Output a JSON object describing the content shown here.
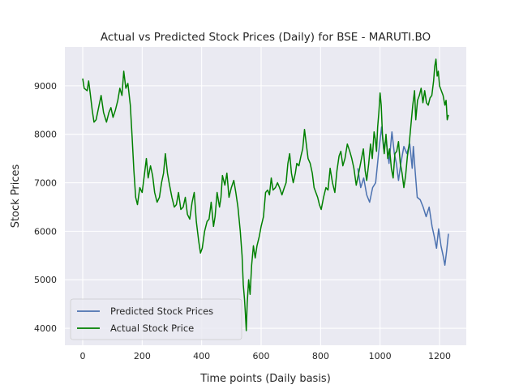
{
  "chart_data": {
    "type": "line",
    "title": "Actual vs Predicted Stock Prices (Daily) for BSE - MARUTI.BO",
    "xlabel": "Time points (Daily basis)",
    "ylabel": "Stock Prices",
    "xlim": [
      -60,
      1290
    ],
    "ylim": [
      3650,
      9800
    ],
    "xticks": [
      0,
      200,
      400,
      600,
      800,
      1000,
      1200
    ],
    "yticks": [
      4000,
      5000,
      6000,
      7000,
      8000,
      9000
    ],
    "grid": true,
    "legend_position": "lower-left",
    "background_color": "#eaeaf2",
    "series": [
      {
        "name": "Predicted Stock Prices",
        "color": "#4c72b0",
        "points": [
          [
            925,
            7300
          ],
          [
            935,
            6900
          ],
          [
            945,
            7100
          ],
          [
            955,
            6750
          ],
          [
            965,
            6600
          ],
          [
            975,
            6900
          ],
          [
            985,
            7000
          ],
          [
            995,
            7600
          ],
          [
            1005,
            8150
          ],
          [
            1012,
            7700
          ],
          [
            1020,
            7900
          ],
          [
            1030,
            7400
          ],
          [
            1040,
            8050
          ],
          [
            1048,
            7600
          ],
          [
            1055,
            7400
          ],
          [
            1062,
            7050
          ],
          [
            1070,
            7400
          ],
          [
            1080,
            7750
          ],
          [
            1090,
            7600
          ],
          [
            1100,
            7800
          ],
          [
            1108,
            7300
          ],
          [
            1112,
            7750
          ],
          [
            1118,
            7250
          ],
          [
            1125,
            6700
          ],
          [
            1135,
            6650
          ],
          [
            1145,
            6500
          ],
          [
            1155,
            6300
          ],
          [
            1165,
            6500
          ],
          [
            1175,
            6100
          ],
          [
            1182,
            5900
          ],
          [
            1190,
            5650
          ],
          [
            1197,
            6050
          ],
          [
            1205,
            5700
          ],
          [
            1212,
            5500
          ],
          [
            1218,
            5300
          ],
          [
            1224,
            5600
          ],
          [
            1230,
            5950
          ]
        ]
      },
      {
        "name": "Actual Stock Price",
        "color": "#008000",
        "points": [
          [
            0,
            9150
          ],
          [
            5,
            8950
          ],
          [
            15,
            8900
          ],
          [
            20,
            9100
          ],
          [
            25,
            8850
          ],
          [
            32,
            8500
          ],
          [
            38,
            8250
          ],
          [
            45,
            8300
          ],
          [
            55,
            8600
          ],
          [
            62,
            8800
          ],
          [
            70,
            8450
          ],
          [
            80,
            8250
          ],
          [
            88,
            8450
          ],
          [
            95,
            8550
          ],
          [
            102,
            8350
          ],
          [
            110,
            8500
          ],
          [
            118,
            8700
          ],
          [
            125,
            8950
          ],
          [
            132,
            8800
          ],
          [
            138,
            9300
          ],
          [
            145,
            8950
          ],
          [
            152,
            9050
          ],
          [
            160,
            8600
          ],
          [
            166,
            7950
          ],
          [
            172,
            7250
          ],
          [
            178,
            6700
          ],
          [
            184,
            6550
          ],
          [
            192,
            6900
          ],
          [
            200,
            6800
          ],
          [
            208,
            7200
          ],
          [
            214,
            7500
          ],
          [
            220,
            7100
          ],
          [
            228,
            7350
          ],
          [
            235,
            7150
          ],
          [
            242,
            6800
          ],
          [
            250,
            6600
          ],
          [
            258,
            6700
          ],
          [
            265,
            7000
          ],
          [
            272,
            7200
          ],
          [
            278,
            7600
          ],
          [
            285,
            7200
          ],
          [
            292,
            6950
          ],
          [
            300,
            6700
          ],
          [
            308,
            6500
          ],
          [
            315,
            6550
          ],
          [
            322,
            6800
          ],
          [
            330,
            6450
          ],
          [
            338,
            6500
          ],
          [
            345,
            6700
          ],
          [
            352,
            6350
          ],
          [
            360,
            6250
          ],
          [
            368,
            6600
          ],
          [
            375,
            6800
          ],
          [
            382,
            6200
          ],
          [
            390,
            5800
          ],
          [
            396,
            5550
          ],
          [
            402,
            5650
          ],
          [
            410,
            6000
          ],
          [
            418,
            6200
          ],
          [
            425,
            6250
          ],
          [
            432,
            6600
          ],
          [
            440,
            6100
          ],
          [
            445,
            6300
          ],
          [
            452,
            6800
          ],
          [
            460,
            6500
          ],
          [
            465,
            6700
          ],
          [
            470,
            7150
          ],
          [
            478,
            6950
          ],
          [
            485,
            7200
          ],
          [
            492,
            6700
          ],
          [
            500,
            6900
          ],
          [
            508,
            7050
          ],
          [
            515,
            6800
          ],
          [
            522,
            6500
          ],
          [
            530,
            6000
          ],
          [
            536,
            5500
          ],
          [
            540,
            4900
          ],
          [
            544,
            4600
          ],
          [
            547,
            4300
          ],
          [
            550,
            3950
          ],
          [
            553,
            4500
          ],
          [
            558,
            5000
          ],
          [
            563,
            4700
          ],
          [
            568,
            5300
          ],
          [
            574,
            5700
          ],
          [
            580,
            5450
          ],
          [
            586,
            5700
          ],
          [
            594,
            5900
          ],
          [
            600,
            6100
          ],
          [
            608,
            6300
          ],
          [
            615,
            6800
          ],
          [
            622,
            6850
          ],
          [
            628,
            6750
          ],
          [
            634,
            7100
          ],
          [
            640,
            6850
          ],
          [
            648,
            6900
          ],
          [
            655,
            7000
          ],
          [
            662,
            6900
          ],
          [
            670,
            6750
          ],
          [
            678,
            6900
          ],
          [
            684,
            7000
          ],
          [
            690,
            7400
          ],
          [
            696,
            7600
          ],
          [
            702,
            7200
          ],
          [
            708,
            7000
          ],
          [
            715,
            7200
          ],
          [
            720,
            7400
          ],
          [
            727,
            7350
          ],
          [
            734,
            7550
          ],
          [
            740,
            7700
          ],
          [
            746,
            8100
          ],
          [
            752,
            7800
          ],
          [
            758,
            7500
          ],
          [
            765,
            7400
          ],
          [
            772,
            7200
          ],
          [
            778,
            6900
          ],
          [
            784,
            6800
          ],
          [
            790,
            6700
          ],
          [
            796,
            6550
          ],
          [
            802,
            6450
          ],
          [
            810,
            6700
          ],
          [
            818,
            6900
          ],
          [
            825,
            6850
          ],
          [
            832,
            7300
          ],
          [
            840,
            7000
          ],
          [
            848,
            6800
          ],
          [
            855,
            7250
          ],
          [
            862,
            7550
          ],
          [
            868,
            7650
          ],
          [
            875,
            7350
          ],
          [
            882,
            7500
          ],
          [
            890,
            7800
          ],
          [
            898,
            7650
          ],
          [
            905,
            7500
          ],
          [
            912,
            7300
          ],
          [
            920,
            6950
          ],
          [
            928,
            7200
          ],
          [
            936,
            7450
          ],
          [
            944,
            7700
          ],
          [
            950,
            7250
          ],
          [
            955,
            7050
          ],
          [
            962,
            7400
          ],
          [
            968,
            7800
          ],
          [
            974,
            7500
          ],
          [
            980,
            8050
          ],
          [
            984,
            7900
          ],
          [
            988,
            7650
          ],
          [
            992,
            8150
          ],
          [
            996,
            8450
          ],
          [
            1000,
            8850
          ],
          [
            1004,
            8600
          ],
          [
            1008,
            8000
          ],
          [
            1014,
            7600
          ],
          [
            1020,
            8000
          ],
          [
            1026,
            7500
          ],
          [
            1032,
            7700
          ],
          [
            1038,
            7300
          ],
          [
            1044,
            7100
          ],
          [
            1050,
            7600
          ],
          [
            1056,
            7650
          ],
          [
            1062,
            7850
          ],
          [
            1068,
            7400
          ],
          [
            1074,
            7200
          ],
          [
            1080,
            6900
          ],
          [
            1086,
            7150
          ],
          [
            1092,
            7550
          ],
          [
            1098,
            7800
          ],
          [
            1104,
            8200
          ],
          [
            1110,
            8600
          ],
          [
            1116,
            8900
          ],
          [
            1120,
            8300
          ],
          [
            1126,
            8700
          ],
          [
            1132,
            8800
          ],
          [
            1138,
            8950
          ],
          [
            1144,
            8650
          ],
          [
            1150,
            8900
          ],
          [
            1156,
            8650
          ],
          [
            1162,
            8600
          ],
          [
            1168,
            8750
          ],
          [
            1174,
            8800
          ],
          [
            1180,
            9100
          ],
          [
            1184,
            9400
          ],
          [
            1188,
            9550
          ],
          [
            1192,
            9200
          ],
          [
            1196,
            9300
          ],
          [
            1200,
            9000
          ],
          [
            1206,
            8900
          ],
          [
            1212,
            8800
          ],
          [
            1218,
            8600
          ],
          [
            1222,
            8700
          ],
          [
            1226,
            8300
          ],
          [
            1230,
            8400
          ]
        ]
      }
    ]
  }
}
